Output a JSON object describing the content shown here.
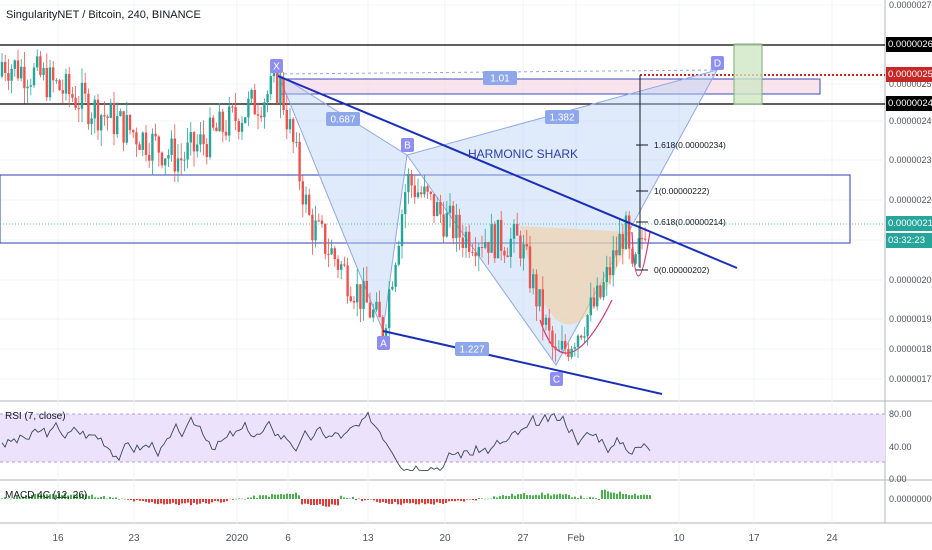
{
  "chart_data": {
    "type": "candlestick",
    "title": "SingularityNET / Bitcoin, 240, BINANCE",
    "pattern_name": "HARMONIC SHARK",
    "y_ticks": [
      "0.00000270",
      "0.00000250",
      "0.00000240",
      "0.00000230",
      "0.00000220",
      "0.00000210",
      "0.00000200",
      "0.00000190",
      "0.00000182",
      "0.00000175"
    ],
    "x_ticks": [
      "16",
      "23",
      "2020",
      "6",
      "13",
      "20",
      "27",
      "Feb",
      "10",
      "17",
      "24"
    ],
    "price_tags": [
      {
        "label": "0.00000260",
        "bg": "#000000",
        "fg": "#ffffff"
      },
      {
        "label": "0.00000252",
        "bg": "#c62828",
        "fg": "#ffffff"
      },
      {
        "label": "0.00000245",
        "bg": "#000000",
        "fg": "#ffffff"
      },
      {
        "label": "0.00000214",
        "bg": "#26a69a",
        "fg": "#ffffff"
      },
      {
        "label": "03:32:23",
        "bg": "#26a69a",
        "fg": "#ffffff"
      }
    ],
    "pattern_points": [
      {
        "label": "X",
        "price": 2.51e-06
      },
      {
        "label": "A",
        "price": 1.87e-06
      },
      {
        "label": "B",
        "price": 2.31e-06
      },
      {
        "label": "C",
        "price": 1.77e-06
      },
      {
        "label": "D",
        "price": 2.52e-06
      }
    ],
    "ratios": [
      "0.687",
      "1.382",
      "1.227",
      "1.01"
    ],
    "fib_levels": [
      {
        "label": "1.618(0.00000234)",
        "value": 2.34e-06
      },
      {
        "label": "1(0.00000222)",
        "value": 2.22e-06
      },
      {
        "label": "0.618(0.00000214)",
        "value": 2.14e-06
      },
      {
        "label": "0(0.00000202)",
        "value": 2.02e-06
      }
    ],
    "last_price": 2.14e-06,
    "rsi": {
      "label": "RSI (7, close)",
      "ticks": [
        "80.00",
        "40.00",
        "0.00"
      ]
    },
    "macd": {
      "label": "MACD 4C (12, 26)",
      "ticks": [
        "0.00000000"
      ]
    },
    "colors": {
      "up": "#26a69a",
      "down": "#ef5350",
      "line": "#1a2fb8",
      "pattern_fill": "#b9d0f5",
      "cup_fill": "#f3cf9f"
    }
  }
}
